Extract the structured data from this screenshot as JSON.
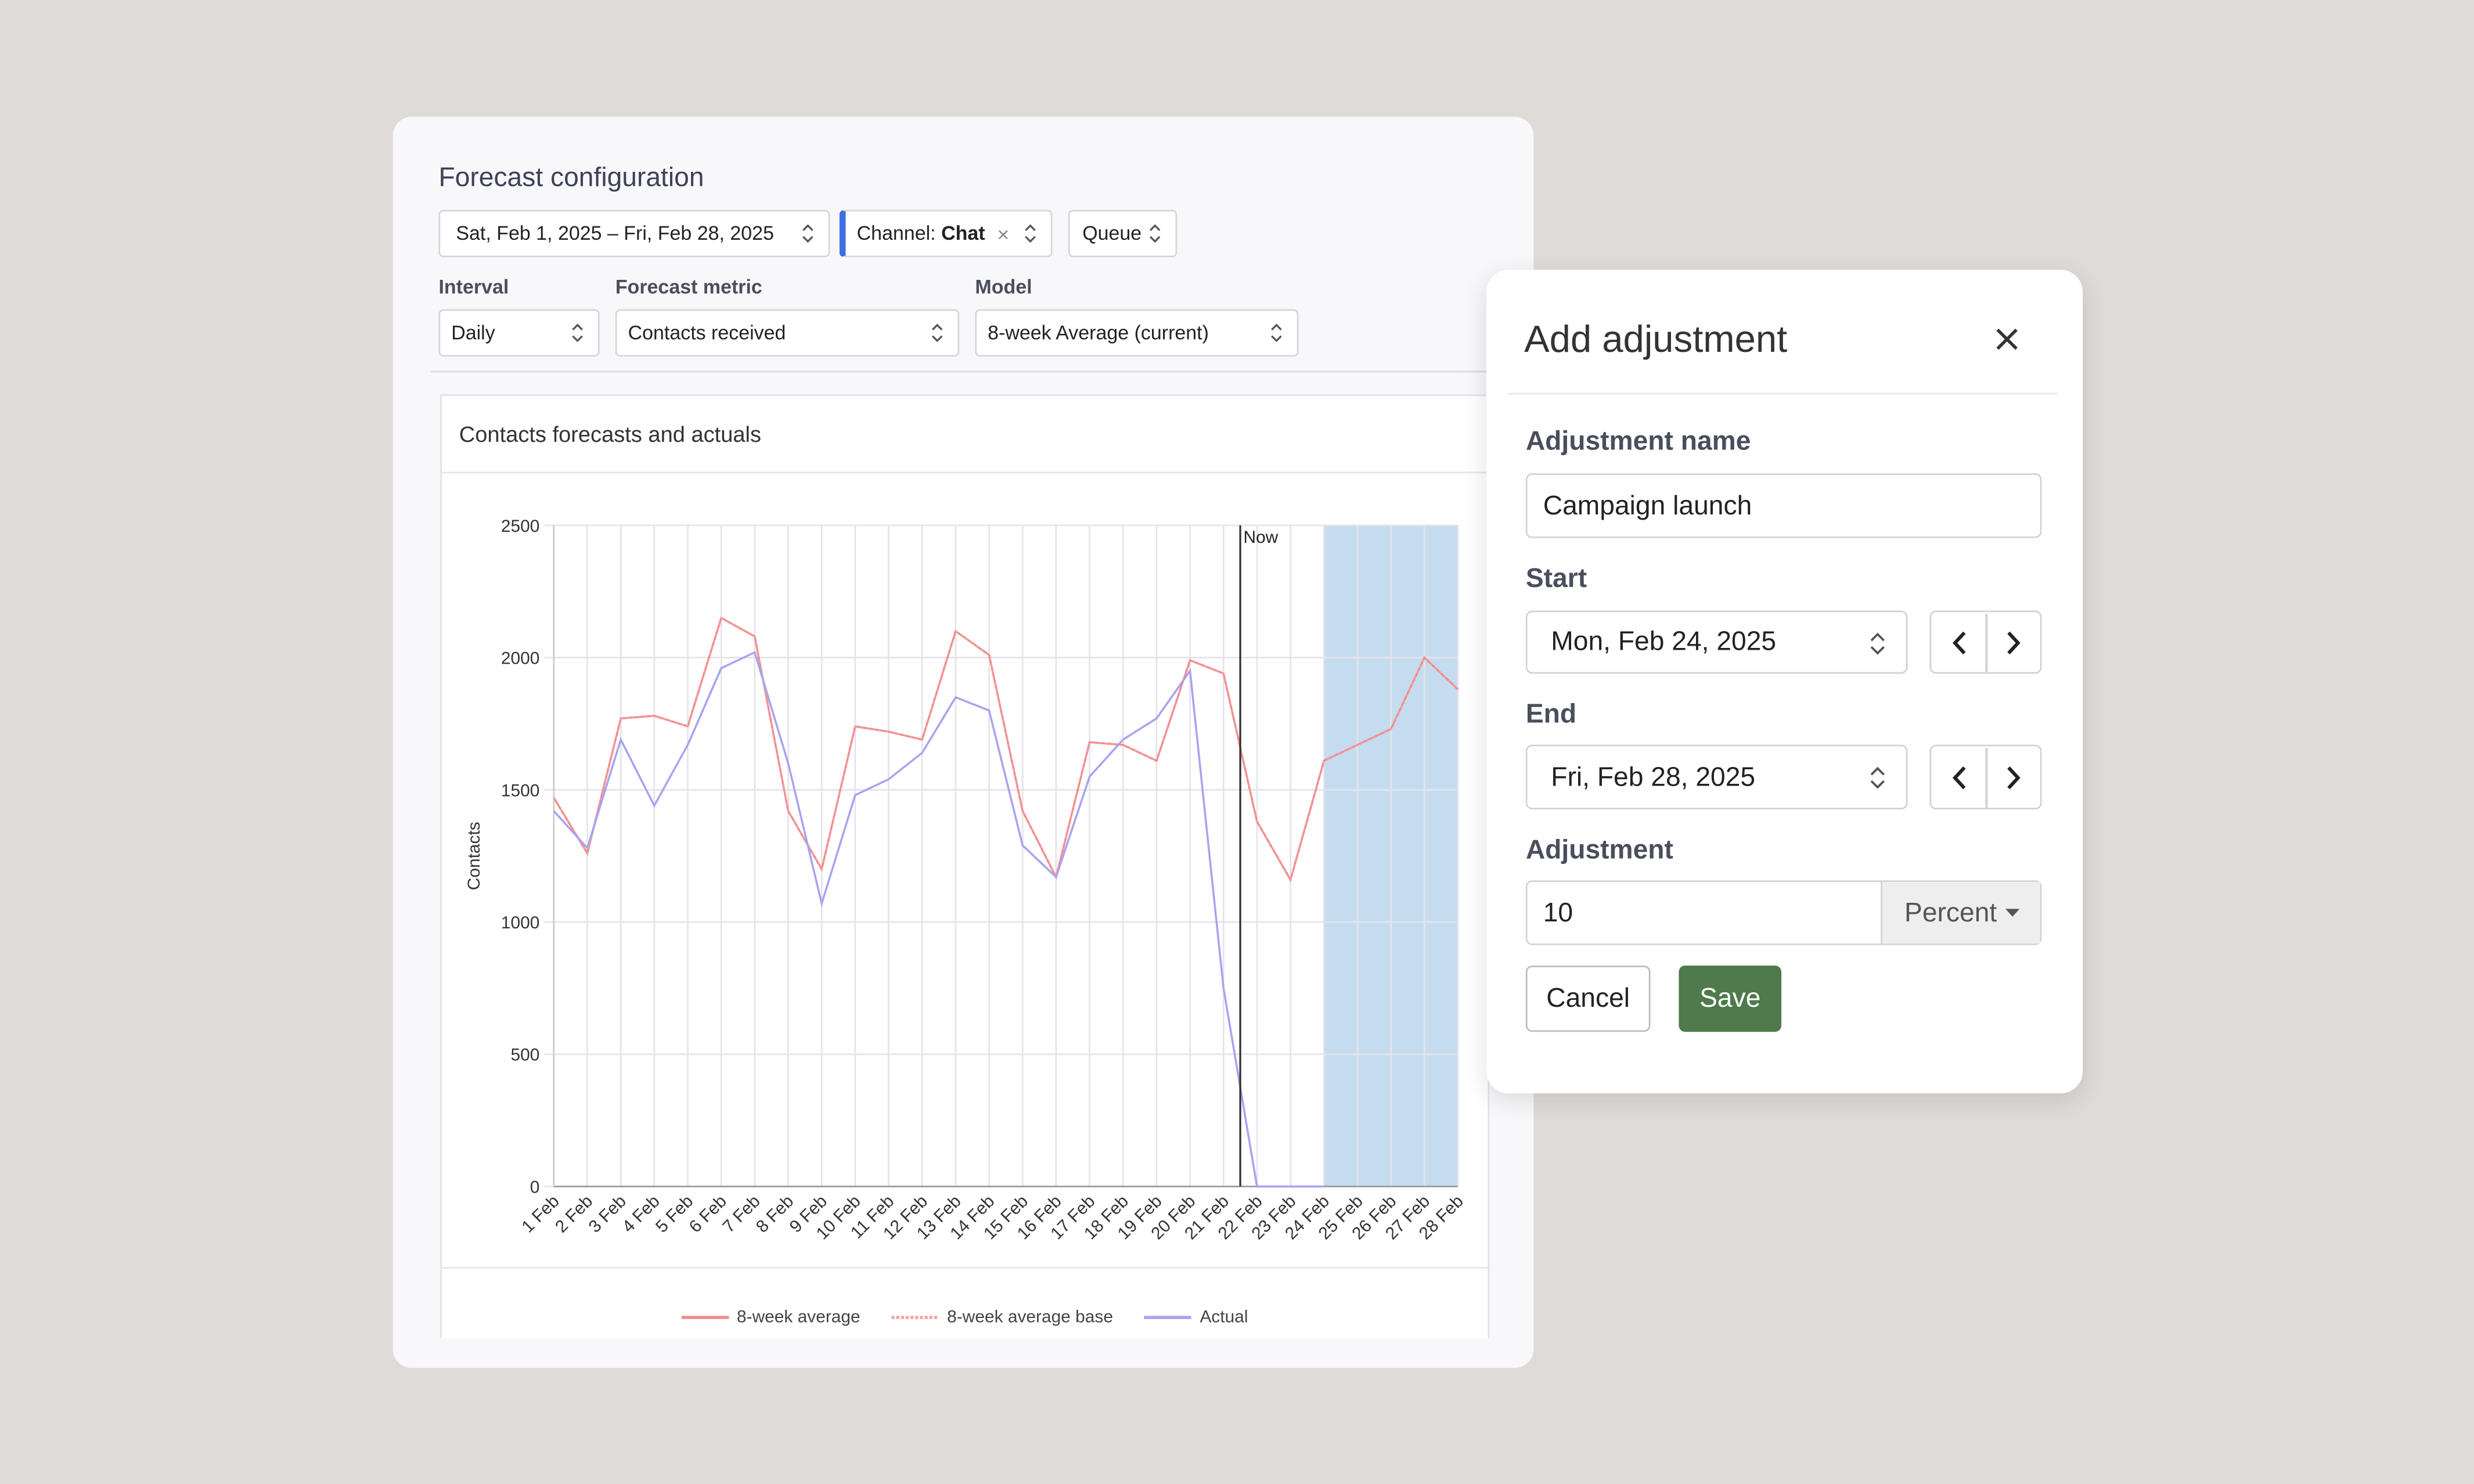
{
  "config": {
    "title": "Forecast configuration",
    "date_range": "Sat, Feb 1, 2025 – Fri, Feb 28, 2025",
    "channel_label": "Channel:",
    "channel_value": "Chat",
    "queue": "Queue",
    "interval_label": "Interval",
    "interval": "Daily",
    "metric_label": "Forecast metric",
    "metric": "Contacts received",
    "model_label": "Model",
    "model": "8-week Average (current)"
  },
  "chart_data": {
    "type": "line",
    "title": "Contacts forecasts and actuals",
    "y_label": "Contacts",
    "categories": [
      "1 Feb",
      "2 Feb",
      "3 Feb",
      "4 Feb",
      "5 Feb",
      "6 Feb",
      "7 Feb",
      "8 Feb",
      "9 Feb",
      "10 Feb",
      "11 Feb",
      "12 Feb",
      "13 Feb",
      "14 Feb",
      "15 Feb",
      "16 Feb",
      "17 Feb",
      "18 Feb",
      "19 Feb",
      "20 Feb",
      "21 Feb",
      "22 Feb",
      "23 Feb",
      "24 Feb",
      "25 Feb",
      "26 Feb",
      "27 Feb",
      "28 Feb"
    ],
    "series": [
      {
        "name": "8-week average",
        "color": "#f28b8b",
        "values": [
          1470,
          1260,
          1770,
          1780,
          1740,
          2150,
          2080,
          1420,
          1200,
          1740,
          1720,
          1690,
          2100,
          2010,
          1420,
          1170,
          1680,
          1670,
          1610,
          1990,
          1940,
          1380,
          1160,
          1610,
          1670,
          1730,
          2000,
          1880
        ]
      },
      {
        "name": "8-week average base",
        "color": "#f4a5a5",
        "dashed": true,
        "values": [
          1470,
          1260,
          1770,
          1780,
          1740,
          2150,
          2080,
          1420,
          1200,
          1740,
          1720,
          1690,
          2100,
          2010,
          1420,
          1170,
          1680,
          1670,
          1610,
          1990,
          1940,
          1380,
          1160,
          1610,
          1670,
          1730,
          2000,
          1880
        ]
      },
      {
        "name": "Actual",
        "color": "#a9a3f0",
        "values": [
          1420,
          1280,
          1690,
          1440,
          1670,
          1960,
          2020,
          1600,
          1070,
          1480,
          1540,
          1640,
          1850,
          1800,
          1290,
          1170,
          1550,
          1690,
          1770,
          1950,
          750,
          0,
          0,
          0,
          null,
          null,
          null,
          null
        ]
      }
    ],
    "ylim": [
      0,
      2500
    ],
    "yticks": [
      0,
      500,
      1000,
      1500,
      2000,
      2500
    ],
    "grid": true,
    "annotations": [
      {
        "label": "Now",
        "x": 20.5
      }
    ],
    "highlight": {
      "from": "24 Feb",
      "to": "28 Feb",
      "color": "#c5dcf0"
    }
  },
  "dialog": {
    "title": "Add adjustment",
    "name_label": "Adjustment name",
    "name": "Campaign launch",
    "start_label": "Start",
    "start": "Mon, Feb 24, 2025",
    "end_label": "End",
    "end": "Fri, Feb 28, 2025",
    "adjustment_label": "Adjustment",
    "adjustment": 10,
    "unit": "Percent",
    "cancel": "Cancel",
    "save": "Save"
  }
}
